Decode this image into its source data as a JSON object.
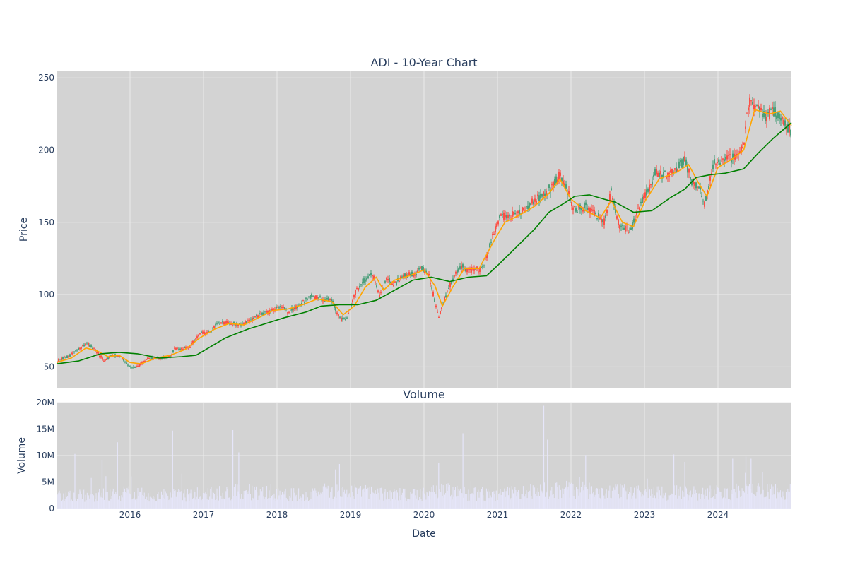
{
  "chart_data": [
    {
      "type": "candlestick",
      "title": "ADI - 10-Year Chart",
      "ylabel": "Price",
      "xlabel": "",
      "x_range": [
        2015.0,
        2025.0
      ],
      "ylim": [
        35,
        255
      ],
      "yticks": [
        50,
        100,
        150,
        200,
        250
      ],
      "xticks": [
        2016,
        2017,
        2018,
        2019,
        2020,
        2021,
        2022,
        2023,
        2024
      ],
      "grid": true,
      "up_color": "#3d9970",
      "down_color": "#ff4136",
      "plot_bg": "#d3d3d3",
      "price_path": [
        [
          2015.0,
          54
        ],
        [
          2015.15,
          57
        ],
        [
          2015.3,
          62
        ],
        [
          2015.42,
          66
        ],
        [
          2015.5,
          63
        ],
        [
          2015.65,
          54
        ],
        [
          2015.75,
          58
        ],
        [
          2015.85,
          58
        ],
        [
          2016.0,
          50
        ],
        [
          2016.1,
          50
        ],
        [
          2016.25,
          56
        ],
        [
          2016.4,
          56
        ],
        [
          2016.55,
          57
        ],
        [
          2016.6,
          62
        ],
        [
          2016.8,
          63
        ],
        [
          2016.95,
          73
        ],
        [
          2017.1,
          74
        ],
        [
          2017.2,
          81
        ],
        [
          2017.35,
          80
        ],
        [
          2017.5,
          79
        ],
        [
          2017.6,
          81
        ],
        [
          2017.8,
          87
        ],
        [
          2017.95,
          89
        ],
        [
          2018.05,
          93
        ],
        [
          2018.15,
          88
        ],
        [
          2018.3,
          92
        ],
        [
          2018.45,
          99
        ],
        [
          2018.6,
          97
        ],
        [
          2018.75,
          96
        ],
        [
          2018.85,
          83
        ],
        [
          2018.95,
          84
        ],
        [
          2019.05,
          100
        ],
        [
          2019.15,
          108
        ],
        [
          2019.3,
          114
        ],
        [
          2019.4,
          99
        ],
        [
          2019.5,
          112
        ],
        [
          2019.6,
          107
        ],
        [
          2019.7,
          113
        ],
        [
          2019.85,
          114
        ],
        [
          2019.95,
          118
        ],
        [
          2020.05,
          116
        ],
        [
          2020.2,
          85
        ],
        [
          2020.3,
          100
        ],
        [
          2020.4,
          112
        ],
        [
          2020.5,
          120
        ],
        [
          2020.6,
          117
        ],
        [
          2020.8,
          118
        ],
        [
          2020.95,
          143
        ],
        [
          2021.05,
          155
        ],
        [
          2021.15,
          154
        ],
        [
          2021.3,
          157
        ],
        [
          2021.45,
          163
        ],
        [
          2021.6,
          169
        ],
        [
          2021.75,
          175
        ],
        [
          2021.85,
          183
        ],
        [
          2021.95,
          172
        ],
        [
          2022.05,
          158
        ],
        [
          2022.2,
          161
        ],
        [
          2022.35,
          155
        ],
        [
          2022.45,
          150
        ],
        [
          2022.55,
          172
        ],
        [
          2022.65,
          148
        ],
        [
          2022.8,
          143
        ],
        [
          2022.95,
          163
        ],
        [
          2023.05,
          172
        ],
        [
          2023.15,
          185
        ],
        [
          2023.3,
          182
        ],
        [
          2023.45,
          188
        ],
        [
          2023.55,
          193
        ],
        [
          2023.65,
          178
        ],
        [
          2023.75,
          175
        ],
        [
          2023.82,
          162
        ],
        [
          2023.95,
          192
        ],
        [
          2024.1,
          193
        ],
        [
          2024.25,
          196
        ],
        [
          2024.35,
          203
        ],
        [
          2024.42,
          233
        ],
        [
          2024.55,
          230
        ],
        [
          2024.65,
          222
        ],
        [
          2024.75,
          228
        ],
        [
          2024.85,
          222
        ],
        [
          2025.0,
          213
        ]
      ],
      "series": [
        {
          "name": "",
          "color": "#ffa500",
          "points": [
            [
              2015.0,
              53
            ],
            [
              2015.2,
              56
            ],
            [
              2015.4,
              63
            ],
            [
              2015.55,
              61
            ],
            [
              2015.7,
              57
            ],
            [
              2015.85,
              58
            ],
            [
              2016.0,
              53
            ],
            [
              2016.15,
              52
            ],
            [
              2016.35,
              56
            ],
            [
              2016.55,
              58
            ],
            [
              2016.75,
              62
            ],
            [
              2016.95,
              70
            ],
            [
              2017.15,
              76
            ],
            [
              2017.35,
              80
            ],
            [
              2017.55,
              79
            ],
            [
              2017.75,
              84
            ],
            [
              2017.95,
              89
            ],
            [
              2018.15,
              90
            ],
            [
              2018.35,
              93
            ],
            [
              2018.55,
              97
            ],
            [
              2018.75,
              95
            ],
            [
              2018.9,
              86
            ],
            [
              2019.05,
              92
            ],
            [
              2019.2,
              105
            ],
            [
              2019.35,
              112
            ],
            [
              2019.45,
              103
            ],
            [
              2019.6,
              110
            ],
            [
              2019.8,
              113
            ],
            [
              2020.0,
              117
            ],
            [
              2020.15,
              106
            ],
            [
              2020.25,
              92
            ],
            [
              2020.4,
              106
            ],
            [
              2020.55,
              118
            ],
            [
              2020.75,
              118
            ],
            [
              2020.95,
              137
            ],
            [
              2021.1,
              150
            ],
            [
              2021.3,
              155
            ],
            [
              2021.5,
              161
            ],
            [
              2021.7,
              170
            ],
            [
              2021.85,
              180
            ],
            [
              2022.0,
              166
            ],
            [
              2022.2,
              158
            ],
            [
              2022.4,
              153
            ],
            [
              2022.55,
              165
            ],
            [
              2022.7,
              150
            ],
            [
              2022.85,
              147
            ],
            [
              2023.0,
              164
            ],
            [
              2023.2,
              180
            ],
            [
              2023.45,
              185
            ],
            [
              2023.6,
              190
            ],
            [
              2023.75,
              176
            ],
            [
              2023.85,
              168
            ],
            [
              2024.0,
              188
            ],
            [
              2024.2,
              194
            ],
            [
              2024.35,
              200
            ],
            [
              2024.5,
              228
            ],
            [
              2024.7,
              225
            ],
            [
              2024.85,
              227
            ],
            [
              2025.0,
              217
            ]
          ]
        },
        {
          "name": "",
          "color": "#008000",
          "points": [
            [
              2015.0,
              52
            ],
            [
              2015.3,
              54
            ],
            [
              2015.6,
              59
            ],
            [
              2015.85,
              60
            ],
            [
              2016.1,
              59
            ],
            [
              2016.4,
              56
            ],
            [
              2016.7,
              57
            ],
            [
              2016.9,
              58
            ],
            [
              2017.1,
              64
            ],
            [
              2017.3,
              70
            ],
            [
              2017.6,
              76
            ],
            [
              2017.85,
              80
            ],
            [
              2018.1,
              84
            ],
            [
              2018.4,
              88
            ],
            [
              2018.6,
              92
            ],
            [
              2018.85,
              93
            ],
            [
              2019.1,
              93
            ],
            [
              2019.35,
              96
            ],
            [
              2019.6,
              103
            ],
            [
              2019.85,
              110
            ],
            [
              2020.1,
              112
            ],
            [
              2020.35,
              109
            ],
            [
              2020.6,
              112
            ],
            [
              2020.85,
              113
            ],
            [
              2021.0,
              120
            ],
            [
              2021.2,
              130
            ],
            [
              2021.5,
              145
            ],
            [
              2021.7,
              157
            ],
            [
              2021.9,
              163
            ],
            [
              2022.05,
              168
            ],
            [
              2022.25,
              169
            ],
            [
              2022.45,
              166
            ],
            [
              2022.6,
              164
            ],
            [
              2022.85,
              157
            ],
            [
              2023.1,
              158
            ],
            [
              2023.35,
              167
            ],
            [
              2023.55,
              173
            ],
            [
              2023.7,
              181
            ],
            [
              2023.9,
              183
            ],
            [
              2024.1,
              184
            ],
            [
              2024.35,
              187
            ],
            [
              2024.55,
              198
            ],
            [
              2024.75,
              208
            ],
            [
              2025.0,
              219
            ]
          ]
        }
      ]
    },
    {
      "type": "bar",
      "title": "Volume",
      "ylabel": "Volume",
      "xlabel": "Date",
      "x_range": [
        2015.0,
        2025.0
      ],
      "ylim": [
        0,
        20000000
      ],
      "yticks": [
        0,
        5000000,
        10000000,
        15000000,
        20000000
      ],
      "ytick_labels": [
        "0",
        "5M",
        "10M",
        "15M",
        "20M"
      ],
      "xticks": [
        2016,
        2017,
        2018,
        2019,
        2020,
        2021,
        2022,
        2023,
        2024
      ],
      "grid": true,
      "bar_color": "#e6e6fa",
      "plot_bg": "#d3d3d3",
      "volume_profile": [
        [
          2015.0,
          2600000
        ],
        [
          2015.5,
          2800000
        ],
        [
          2016.0,
          3200000
        ],
        [
          2016.5,
          2700000
        ],
        [
          2017.0,
          3000000
        ],
        [
          2017.5,
          3600000
        ],
        [
          2018.0,
          2900000
        ],
        [
          2018.5,
          3000000
        ],
        [
          2019.0,
          3600000
        ],
        [
          2019.5,
          3100000
        ],
        [
          2020.0,
          2900000
        ],
        [
          2020.3,
          4000000
        ],
        [
          2020.5,
          3100000
        ],
        [
          2021.0,
          2900000
        ],
        [
          2021.6,
          3700000
        ],
        [
          2022.0,
          3900000
        ],
        [
          2022.5,
          3500000
        ],
        [
          2023.0,
          3400000
        ],
        [
          2023.5,
          3300000
        ],
        [
          2024.0,
          3400000
        ],
        [
          2024.5,
          3600000
        ],
        [
          2025.0,
          3400000
        ]
      ],
      "spikes": [
        [
          2015.25,
          10300000
        ],
        [
          2015.62,
          9200000
        ],
        [
          2015.83,
          12500000
        ],
        [
          2016.58,
          14700000
        ],
        [
          2017.4,
          14800000
        ],
        [
          2017.48,
          10600000
        ],
        [
          2018.85,
          8400000
        ],
        [
          2020.2,
          8600000
        ],
        [
          2020.53,
          14200000
        ],
        [
          2021.63,
          19400000
        ],
        [
          2021.68,
          13000000
        ],
        [
          2022.2,
          10100000
        ],
        [
          2023.4,
          10200000
        ],
        [
          2023.55,
          8800000
        ],
        [
          2024.2,
          9400000
        ],
        [
          2024.38,
          9800000
        ],
        [
          2024.45,
          9400000
        ]
      ]
    }
  ]
}
